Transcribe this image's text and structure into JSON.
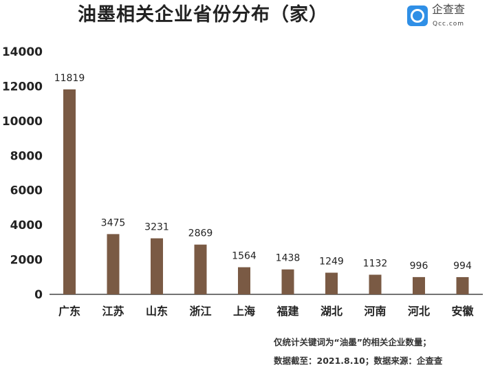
{
  "chart_data": {
    "type": "bar",
    "title": "油墨相关企业省份分布（家）",
    "categories": [
      "广东",
      "江苏",
      "山东",
      "浙江",
      "上海",
      "福建",
      "湖北",
      "河南",
      "河北",
      "安徽"
    ],
    "values": [
      11819,
      3475,
      3231,
      2869,
      1564,
      1438,
      1249,
      1132,
      996,
      994
    ],
    "yticks": [
      0,
      2000,
      4000,
      6000,
      8000,
      10000,
      12000,
      14000
    ],
    "ylim": [
      0,
      14000
    ],
    "xlabel": "",
    "ylabel": "",
    "grid": false,
    "bar_color": "#7a5a44"
  },
  "logo": {
    "name": "企查查",
    "url": "Qcc.com"
  },
  "notes": [
    "仅统计关键词为“油墨”的相关企业数量；",
    "数据截至：2021.8.10；数据来源：企查查"
  ]
}
